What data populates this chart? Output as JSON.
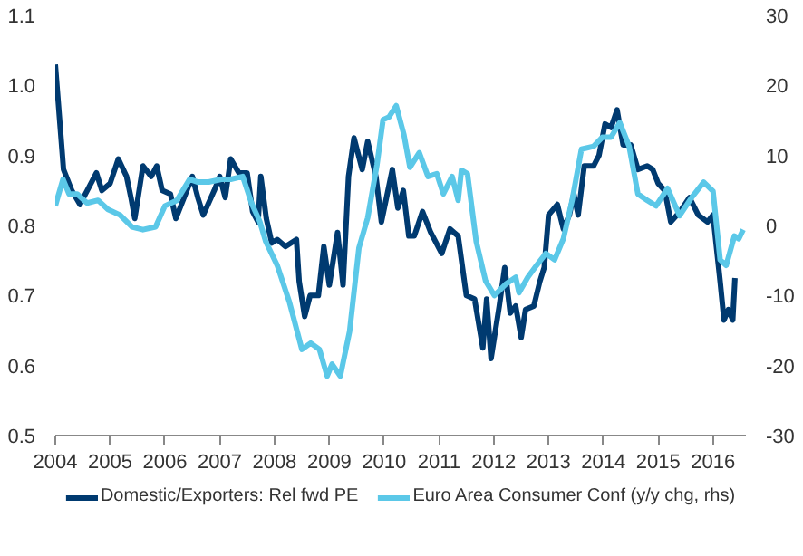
{
  "chart_data": {
    "type": "line",
    "xlim": [
      2004,
      2016.6
    ],
    "xticks": [
      2004,
      2005,
      2006,
      2007,
      2008,
      2009,
      2010,
      2011,
      2012,
      2013,
      2014,
      2015,
      2016
    ],
    "ylim": [
      0.5,
      1.1
    ],
    "yticks": [
      0.5,
      0.6,
      0.7,
      0.8,
      0.9,
      {
        "value": 1,
        "label": "1.0"
      },
      1.1
    ],
    "y2lim": [
      -30,
      30
    ],
    "y2ticks": [
      -30,
      -20,
      -10,
      0,
      10,
      20,
      30
    ],
    "grid": false,
    "legend": "bottom",
    "marker": "none",
    "line_style": "solid",
    "series": [
      {
        "name": "Domestic/Exporters: Rel fwd PE",
        "color": "#003a70",
        "x": [
          2004.0,
          2004.1,
          2004.15,
          2004.3,
          2004.45,
          2004.55,
          2004.75,
          2004.85,
          2005.0,
          2005.15,
          2005.3,
          2005.38,
          2005.45,
          2005.6,
          2005.75,
          2005.85,
          2005.95,
          2006.1,
          2006.2,
          2006.35,
          2006.5,
          2006.6,
          2006.7,
          2006.9,
          2007.0,
          2007.1,
          2007.2,
          2007.35,
          2007.5,
          2007.6,
          2007.7,
          2007.75,
          2007.85,
          2007.95,
          2008.05,
          2008.2,
          2008.4,
          2008.45,
          2008.55,
          2008.65,
          2008.8,
          2008.9,
          2009.0,
          2009.15,
          2009.25,
          2009.35,
          2009.45,
          2009.6,
          2009.7,
          2009.85,
          2009.95,
          2010.15,
          2010.25,
          2010.35,
          2010.45,
          2010.55,
          2010.7,
          2010.85,
          2011.05,
          2011.2,
          2011.35,
          2011.5,
          2011.65,
          2011.8,
          2011.87,
          2011.95,
          2012.1,
          2012.2,
          2012.3,
          2012.4,
          2012.5,
          2012.58,
          2012.73,
          2012.84,
          2012.92,
          2013.0,
          2013.16,
          2013.27,
          2013.38,
          2013.46,
          2013.54,
          2013.65,
          2013.82,
          2013.92,
          2014.03,
          2014.14,
          2014.25,
          2014.36,
          2014.5,
          2014.63,
          2014.8,
          2014.9,
          2015.0,
          2015.12,
          2015.23,
          2015.4,
          2015.57,
          2015.73,
          2015.9,
          2016.0,
          2016.13,
          2016.2,
          2016.28,
          2016.36,
          2016.4
        ],
        "values": [
          1.03,
          0.93,
          0.88,
          0.85,
          0.83,
          0.845,
          0.875,
          0.85,
          0.86,
          0.895,
          0.87,
          0.84,
          0.81,
          0.885,
          0.87,
          0.885,
          0.85,
          0.845,
          0.81,
          0.84,
          0.87,
          0.84,
          0.815,
          0.85,
          0.87,
          0.84,
          0.895,
          0.875,
          0.875,
          0.82,
          0.805,
          0.87,
          0.81,
          0.775,
          0.78,
          0.77,
          0.78,
          0.72,
          0.67,
          0.7,
          0.7,
          0.77,
          0.715,
          0.79,
          0.715,
          0.87,
          0.925,
          0.88,
          0.92,
          0.87,
          0.805,
          0.88,
          0.825,
          0.85,
          0.785,
          0.785,
          0.82,
          0.79,
          0.76,
          0.795,
          0.785,
          0.7,
          0.695,
          0.625,
          0.695,
          0.61,
          0.685,
          0.74,
          0.675,
          0.685,
          0.64,
          0.68,
          0.685,
          0.72,
          0.74,
          0.815,
          0.83,
          0.795,
          0.815,
          0.845,
          0.815,
          0.885,
          0.885,
          0.9,
          0.945,
          0.94,
          0.965,
          0.915,
          0.915,
          0.88,
          0.885,
          0.88,
          0.86,
          0.85,
          0.805,
          0.82,
          0.84,
          0.815,
          0.805,
          0.815,
          0.72,
          0.665,
          0.68,
          0.665,
          0.725
        ]
      },
      {
        "name": "Euro Area Consumer Conf (y/y chg, rhs)",
        "color": "#5bc8e8",
        "axis": "y2",
        "x": [
          2004.0,
          2004.14,
          2004.25,
          2004.4,
          2004.58,
          2004.78,
          2004.96,
          2005.18,
          2005.4,
          2005.6,
          2005.83,
          2006.0,
          2006.22,
          2006.45,
          2006.6,
          2006.8,
          2007.03,
          2007.2,
          2007.42,
          2007.58,
          2007.73,
          2007.84,
          2008.05,
          2008.27,
          2008.5,
          2008.66,
          2008.82,
          2008.96,
          2009.05,
          2009.2,
          2009.37,
          2009.54,
          2009.7,
          2009.87,
          2009.98,
          2010.09,
          2010.22,
          2010.36,
          2010.47,
          2010.64,
          2010.8,
          2010.96,
          2011.08,
          2011.24,
          2011.35,
          2011.41,
          2011.52,
          2011.68,
          2011.85,
          2012.01,
          2012.23,
          2012.4,
          2012.46,
          2012.62,
          2012.78,
          2012.95,
          2013.11,
          2013.27,
          2013.43,
          2013.6,
          2013.82,
          2013.98,
          2014.14,
          2014.3,
          2014.47,
          2014.63,
          2014.8,
          2014.96,
          2015.17,
          2015.39,
          2015.61,
          2015.83,
          2016.0,
          2016.13,
          2016.24,
          2016.39,
          2016.47,
          2016.55
        ],
        "values": [
          2.8,
          6.6,
          4.5,
          4.5,
          3.2,
          3.6,
          2.3,
          1.5,
          -0.2,
          -0.6,
          -0.2,
          2.8,
          3.6,
          6.6,
          6.2,
          6.2,
          6.6,
          6.6,
          7.0,
          3.2,
          0.6,
          -2.3,
          -5.7,
          -10.9,
          -17.7,
          -16.8,
          -17.7,
          -21.5,
          -19.8,
          -21.5,
          -15.1,
          -3.2,
          1.1,
          8.7,
          15.1,
          15.5,
          17.1,
          13.0,
          8.3,
          10.4,
          7.0,
          7.4,
          4.5,
          7.0,
          3.6,
          7.9,
          7.4,
          -2.3,
          -7.9,
          -10.0,
          -8.3,
          -7.4,
          -9.6,
          -7.4,
          -5.7,
          -4.0,
          -4.9,
          -1.9,
          3.6,
          10.9,
          11.3,
          12.6,
          12.6,
          14.7,
          11.3,
          4.5,
          3.6,
          2.8,
          5.3,
          1.4,
          4.0,
          6.2,
          4.9,
          -4.9,
          -5.7,
          -1.5,
          -1.9,
          -0.6
        ]
      }
    ]
  }
}
